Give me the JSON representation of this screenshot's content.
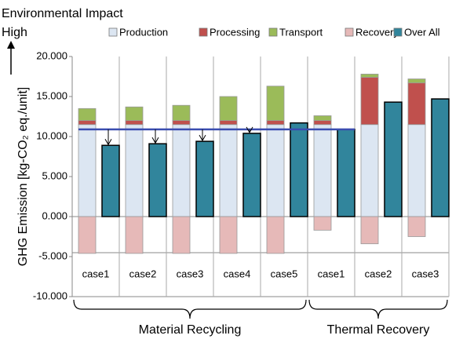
{
  "chart_data": {
    "type": "stacked_bar",
    "annotation_title": "Environmental Impact",
    "annotation_high": "High",
    "y_label": "GHG Emission [kg-CO₂ eq./unit]",
    "categories": [
      "case1",
      "case2",
      "case3",
      "case4",
      "case5",
      "case1",
      "case2",
      "case3"
    ],
    "groups": [
      {
        "name": "Material Recycling",
        "span": 5
      },
      {
        "name": "Thermal Recovery",
        "span": 3
      }
    ],
    "series": [
      {
        "name": "Production",
        "color": "#dce6f2",
        "values": [
          11.5,
          11.5,
          11.5,
          11.5,
          11.5,
          11.5,
          11.5,
          11.5
        ]
      },
      {
        "name": "Processing",
        "color": "#c0504d",
        "values": [
          0.5,
          0.5,
          0.5,
          0.5,
          0.5,
          0.5,
          5.9,
          5.2
        ]
      },
      {
        "name": "Transport",
        "color": "#9bbb59",
        "values": [
          1.5,
          1.7,
          1.9,
          3.0,
          4.3,
          0.6,
          0.4,
          0.5
        ]
      },
      {
        "name": "Recovery",
        "color": "#e6b9b8",
        "values": [
          -4.6,
          -4.6,
          -4.6,
          -4.6,
          -4.6,
          -1.7,
          -3.4,
          -2.5
        ]
      }
    ],
    "overall": {
      "name": "Over All",
      "color": "#31859c",
      "values": [
        8.9,
        9.1,
        9.4,
        10.4,
        11.7,
        10.9,
        14.3,
        14.7
      ]
    },
    "reference_line": {
      "value": 10.9,
      "color": "#3a4db0"
    },
    "ylim": [
      -10,
      20
    ],
    "yticks": [
      {
        "value": -10,
        "label": "-10.000"
      },
      {
        "value": -5,
        "label": "-5.000"
      },
      {
        "value": 0,
        "label": "0.000"
      },
      {
        "value": 5,
        "label": "5.000"
      },
      {
        "value": 10,
        "label": "10.000"
      },
      {
        "value": 15,
        "label": "15.000"
      },
      {
        "value": 20,
        "label": "20.000"
      }
    ]
  }
}
